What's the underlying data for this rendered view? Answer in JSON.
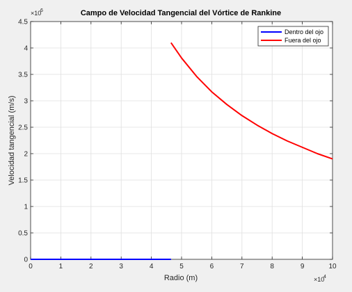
{
  "chart_data": {
    "type": "line",
    "title": "Campo de Velocidad Tangencial del Vórtice de Rankine",
    "xlabel": "Radio (m)",
    "ylabel": "Velocidad tangencial (m/s)",
    "x_exponent_label": "×10",
    "x_exponent": "4",
    "y_exponent_label": "×10",
    "y_exponent": "6",
    "xlim": [
      0,
      100000
    ],
    "ylim": [
      0,
      4500000
    ],
    "x_ticks": [
      0,
      10000,
      20000,
      30000,
      40000,
      50000,
      60000,
      70000,
      80000,
      90000,
      100000
    ],
    "x_tick_labels": [
      "0",
      "1",
      "2",
      "3",
      "4",
      "5",
      "6",
      "7",
      "8",
      "9",
      "10"
    ],
    "y_ticks": [
      0,
      500000,
      1000000,
      1500000,
      2000000,
      2500000,
      3000000,
      3500000,
      4000000,
      4500000
    ],
    "y_tick_labels": [
      "0",
      "0.5",
      "1",
      "1.5",
      "2",
      "2.5",
      "3",
      "3.5",
      "4",
      "4.5"
    ],
    "grid": true,
    "legend_position": "top-right",
    "series": [
      {
        "name": "Dentro del ojo",
        "color": "#0000ff",
        "x": [
          0,
          10000,
          20000,
          30000,
          40000,
          46500
        ],
        "y": [
          0,
          0,
          0,
          0,
          0,
          0
        ]
      },
      {
        "name": "Fuera del ojo",
        "color": "#ff0000",
        "x": [
          46500,
          50000,
          55000,
          60000,
          65000,
          70000,
          75000,
          80000,
          85000,
          90000,
          95000,
          100000
        ],
        "y": [
          4100000,
          3810000,
          3460000,
          3170000,
          2930000,
          2720000,
          2540000,
          2380000,
          2240000,
          2120000,
          2000000,
          1900000
        ]
      }
    ]
  }
}
